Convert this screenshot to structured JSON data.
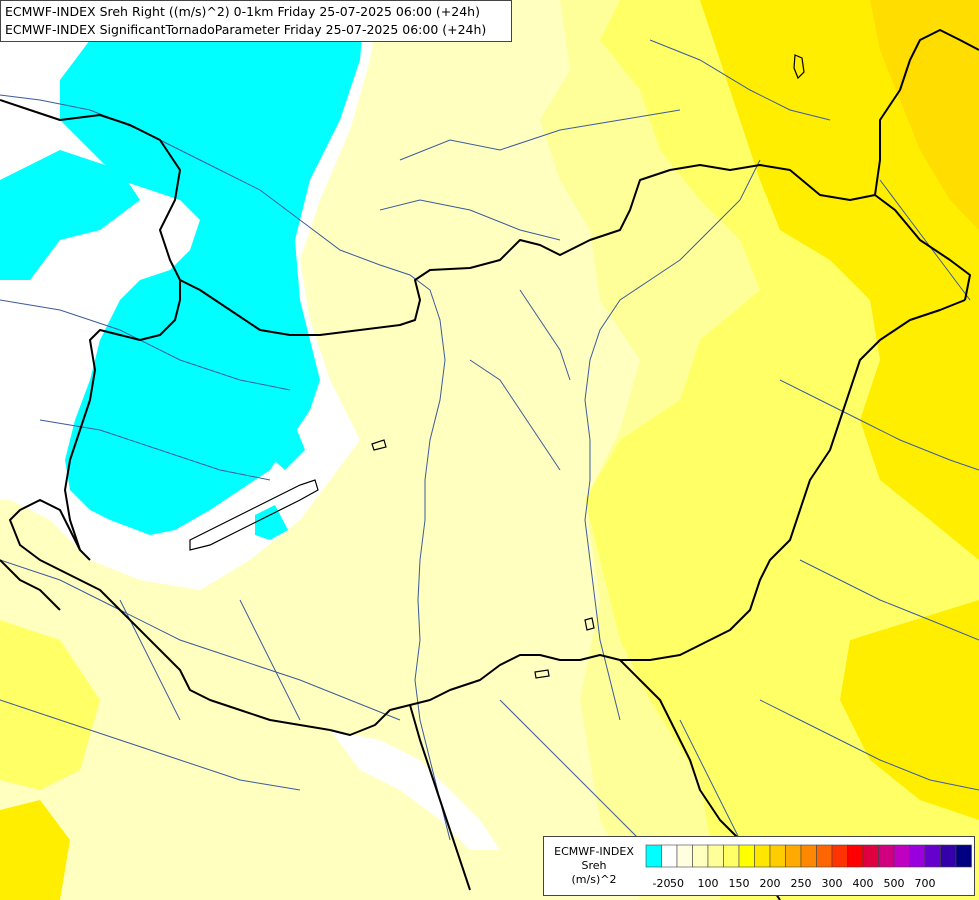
{
  "title": {
    "line1": "ECMWF-INDEX Sreh Right ((m/s)^2) 0-1km Friday 25-07-2025 06:00 (+24h)",
    "line2": "ECMWF-INDEX SignificantTornadoParameter Friday 25-07-2025 06:00 (+24h)"
  },
  "legend": {
    "line1": "ECMWF-INDEX",
    "line2": "Sreh",
    "line3": "(m/s)^2",
    "colors": [
      "#00ffff",
      "#ffffff",
      "#ffffe0",
      "#ffffc0",
      "#ffff99",
      "#ffff66",
      "#ffff00",
      "#ffe600",
      "#ffcc00",
      "#ffaa00",
      "#ff8800",
      "#ff6600",
      "#ff3300",
      "#ff0000",
      "#e00040",
      "#d00080",
      "#c000c0",
      "#9900dd",
      "#6600cc",
      "#3300aa",
      "#000080"
    ],
    "ticks": [
      "-20",
      "50",
      "100",
      "150",
      "200",
      "250",
      "300",
      "400",
      "500",
      "700"
    ]
  },
  "map_colors": {
    "cyan": "#00ffff",
    "white": "#ffffff",
    "pale": "#ffffc0",
    "light_yellow": "#ffff99",
    "yellow": "#ffff66",
    "strong_yellow": "#ffee00",
    "orange_yellow": "#ffdd00",
    "border": "#000000",
    "river": "#3b5b9b"
  }
}
